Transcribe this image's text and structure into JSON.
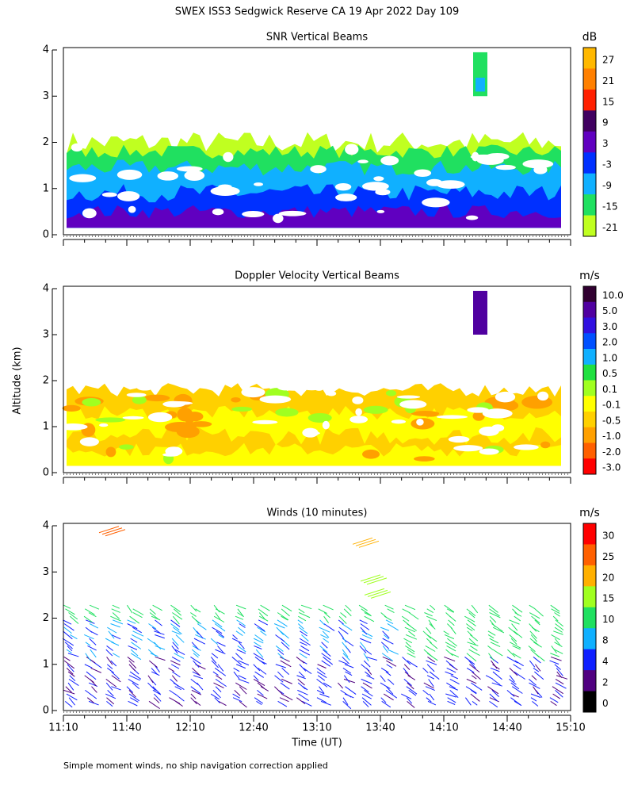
{
  "title": "SWEX ISS3 Sedgwick Reserve CA  19 Apr 2022 Day 109",
  "y_label": "Altitude (km)",
  "x_label": "Time (UT)",
  "x_ticks": [
    "11:10",
    "11:40",
    "12:10",
    "12:40",
    "13:10",
    "13:40",
    "14:10",
    "14:40",
    "15:10"
  ],
  "y_ticks": [
    0,
    1,
    2,
    3,
    4
  ],
  "footnote": "Simple moment winds, no ship navigation correction applied",
  "panels": [
    {
      "title": "SNR Vertical Beams",
      "unit": "dB",
      "labels": [
        "27",
        "21",
        "15",
        "9",
        "3",
        "-3",
        "-9",
        "-15",
        "-21"
      ],
      "colors": [
        "#ffb800",
        "#ff8000",
        "#ff2000",
        "#400060",
        "#6000c0",
        "#0030ff",
        "#10b0ff",
        "#20e060",
        "#c0ff20"
      ]
    },
    {
      "title": "Doppler Velocity Vertical Beams",
      "unit": "m/s",
      "labels": [
        "10.0",
        "5.0",
        "3.0",
        "2.0",
        "1.0",
        "0.5",
        "0.1",
        "-0.1",
        "-0.5",
        "-1.0",
        "-2.0",
        "-3.0"
      ],
      "colors": [
        "#300030",
        "#5000a0",
        "#3010e0",
        "#0050ff",
        "#10b0ff",
        "#20e040",
        "#a0ff20",
        "#ffff00",
        "#ffd000",
        "#ffa000",
        "#ff6000",
        "#ff0000"
      ]
    },
    {
      "title": "Winds (10 minutes)",
      "unit": "m/s",
      "labels": [
        "30",
        "25",
        "20",
        "15",
        "10",
        "8",
        "4",
        "2",
        "0"
      ],
      "colors": [
        "#ff0000",
        "#ff6000",
        "#ffb000",
        "#a0ff20",
        "#20e060",
        "#10b0ff",
        "#1020ff",
        "#500080",
        "#000000"
      ]
    }
  ]
}
